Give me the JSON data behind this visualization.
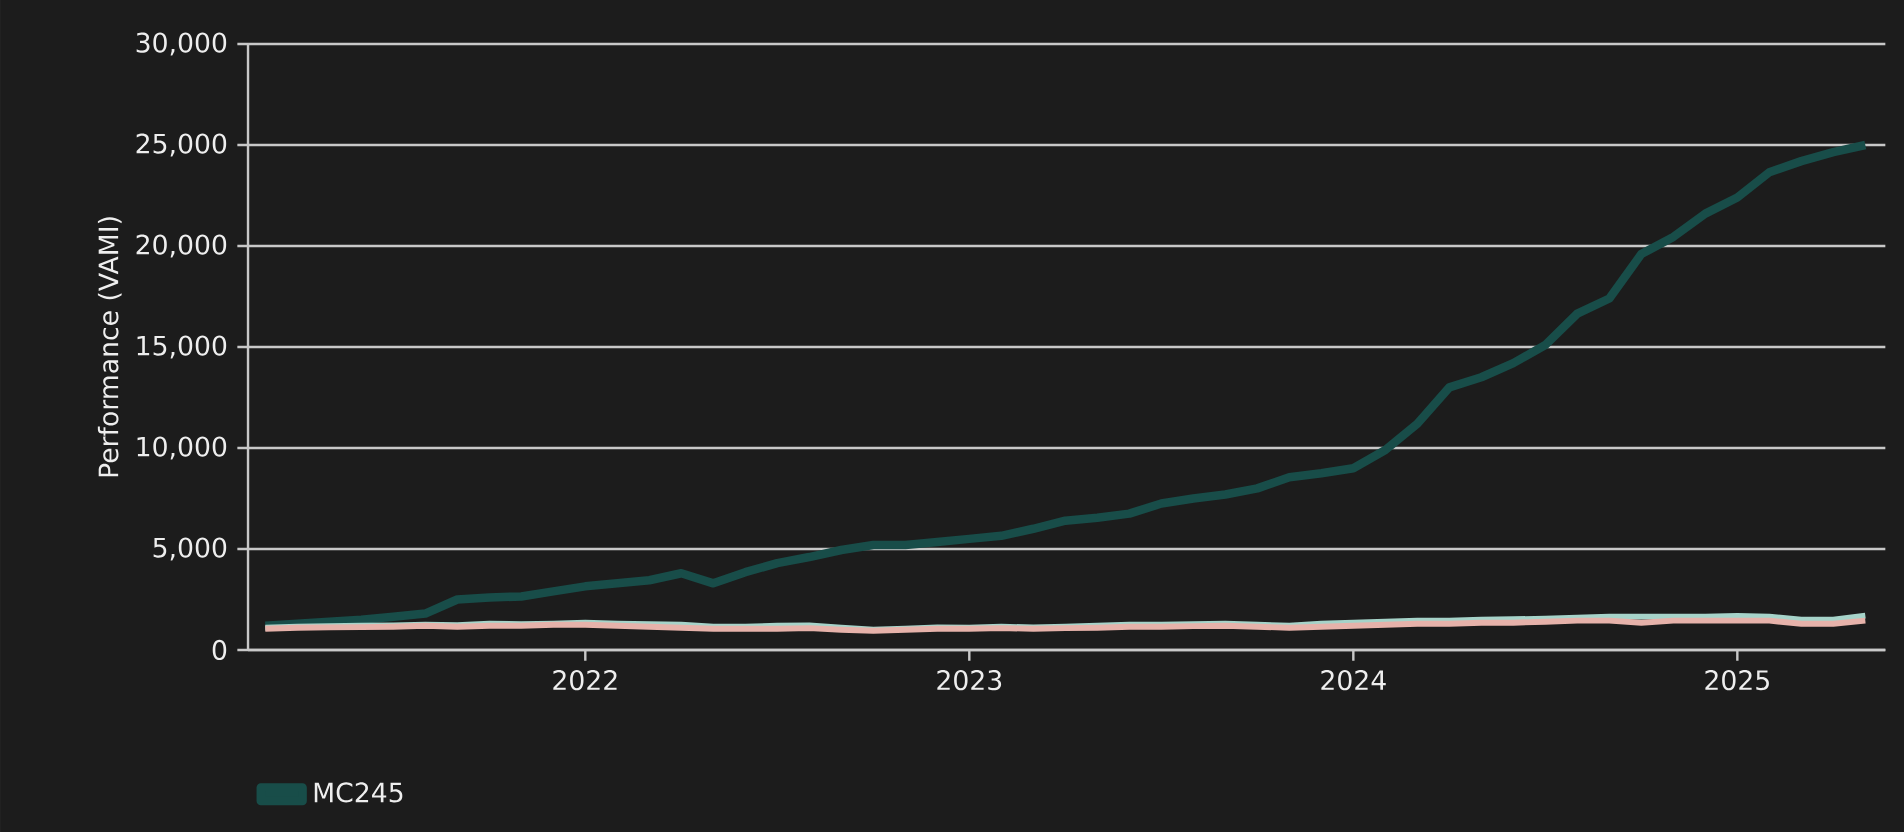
{
  "chart_data": {
    "type": "line",
    "ylabel": "Performance (VAMI)",
    "x": [
      "2021-03",
      "2021-04",
      "2021-05",
      "2021-06",
      "2021-07",
      "2021-08",
      "2021-09",
      "2021-10",
      "2021-11",
      "2021-12",
      "2022-01",
      "2022-02",
      "2022-03",
      "2022-04",
      "2022-05",
      "2022-06",
      "2022-07",
      "2022-08",
      "2022-09",
      "2022-10",
      "2022-11",
      "2022-12",
      "2023-01",
      "2023-02",
      "2023-03",
      "2023-04",
      "2023-05",
      "2023-06",
      "2023-07",
      "2023-08",
      "2023-09",
      "2023-10",
      "2023-11",
      "2023-12",
      "2024-01",
      "2024-02",
      "2024-03",
      "2024-04",
      "2024-05",
      "2024-06",
      "2024-07",
      "2024-08",
      "2024-09",
      "2024-10",
      "2024-11",
      "2024-12",
      "2025-01",
      "2025-02",
      "2025-03",
      "2025-04",
      "2025-05"
    ],
    "series": [
      {
        "name": "MC245",
        "color": "#184d49",
        "values": [
          1200,
          1300,
          1400,
          1500,
          1650,
          1800,
          2500,
          2600,
          2650,
          2900,
          3150,
          3300,
          3450,
          3800,
          3300,
          3850,
          4300,
          4600,
          4950,
          5200,
          5200,
          5350,
          5500,
          5650,
          6000,
          6400,
          6550,
          6750,
          7250,
          7500,
          7700,
          8000,
          8550,
          8750,
          9000,
          9900,
          11200,
          13000,
          13500,
          14200,
          15100,
          16650,
          17400,
          19600,
          20450,
          21600,
          22400,
          23650,
          24200,
          24650,
          25000
        ]
      },
      {
        "color": "#a6d3c9",
        "values": [
          1100,
          1150,
          1180,
          1200,
          1220,
          1250,
          1230,
          1300,
          1280,
          1300,
          1350,
          1300,
          1280,
          1250,
          1150,
          1150,
          1200,
          1220,
          1100,
          1000,
          1050,
          1120,
          1100,
          1150,
          1120,
          1150,
          1200,
          1250,
          1250,
          1280,
          1300,
          1250,
          1200,
          1300,
          1350,
          1400,
          1450,
          1450,
          1500,
          1520,
          1550,
          1600,
          1650,
          1650,
          1650,
          1650,
          1680,
          1650,
          1500,
          1500,
          1700
        ]
      },
      {
        "color": "#e6b2aa",
        "values": [
          1050,
          1100,
          1120,
          1130,
          1150,
          1200,
          1150,
          1200,
          1200,
          1250,
          1250,
          1200,
          1150,
          1100,
          1050,
          1050,
          1050,
          1080,
          1000,
          950,
          1000,
          1050,
          1050,
          1080,
          1050,
          1080,
          1100,
          1150,
          1150,
          1180,
          1200,
          1150,
          1100,
          1150,
          1200,
          1250,
          1300,
          1300,
          1350,
          1350,
          1400,
          1450,
          1450,
          1350,
          1450,
          1450,
          1450,
          1450,
          1300,
          1300,
          1450
        ]
      }
    ],
    "xlim": [
      "2021-02-15",
      "2025-05-20"
    ],
    "xticks": [
      "2022",
      "2023",
      "2024",
      "2025"
    ],
    "ylim": [
      0,
      30000
    ],
    "yticks": [
      0,
      {
        "value": 5000,
        "label": "5,000"
      },
      {
        "value": 10000,
        "label": "10,000"
      },
      {
        "value": 15000,
        "label": "15,000"
      },
      {
        "value": 20000,
        "label": "20,000"
      },
      {
        "value": 25000,
        "label": "25,000"
      },
      {
        "value": 30000,
        "label": "30,000"
      }
    ],
    "grid": "y",
    "legend": "bottom",
    "marker": "none",
    "line_style": "solid"
  }
}
